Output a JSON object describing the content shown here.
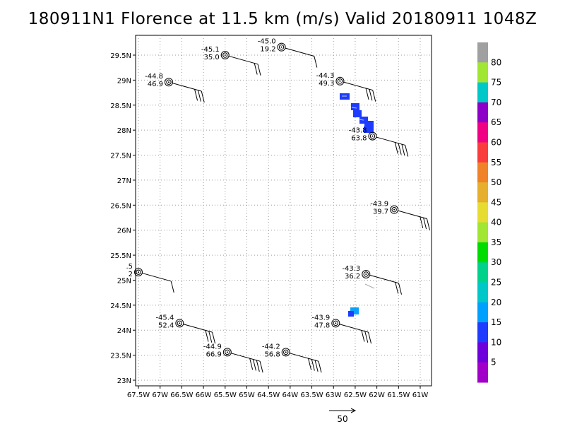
{
  "title": "180911N1 Florence at 11.5 km (m/s) Valid 20180911  1048Z",
  "map": {
    "lon_ticks": [
      "67.5W",
      "67W",
      "66.5W",
      "66W",
      "65.5W",
      "65W",
      "64.5W",
      "64W",
      "63.5W",
      "63W",
      "62.5W",
      "62W",
      "61.5W",
      "61W"
    ],
    "lat_ticks": [
      "29.5N",
      "29N",
      "28.5N",
      "28N",
      "27.5N",
      "27N",
      "26.5N",
      "26N",
      "25.5N",
      "25N",
      "24.5N",
      "24N",
      "23.5N",
      "23N"
    ],
    "lon_range": [
      -67.7,
      -60.6
    ],
    "lat_range": [
      22.9,
      30.1
    ],
    "grid": "dotted"
  },
  "colorbar": {
    "labels": [
      "5",
      "10",
      "15",
      "20",
      "25",
      "30",
      "35",
      "40",
      "45",
      "50",
      "55",
      "60",
      "65",
      "70",
      "75",
      "80"
    ],
    "colors": [
      "#a000c8",
      "#6e00dc",
      "#1e3cff",
      "#00a0ff",
      "#00c8c8",
      "#00d28c",
      "#00dc00",
      "#a0e632",
      "#e6dc32",
      "#e6af2d",
      "#f08228",
      "#fa3c3c",
      "#f00082",
      "#8c00c8",
      "#00c8c8",
      "#a0e632",
      "#a0a0a0"
    ]
  },
  "stations": [
    {
      "t": "-45.1",
      "v": "35.0",
      "lon": -65.5,
      "lat": 29.5
    },
    {
      "t": "-45.0",
      "v": "19.2",
      "lon": -64.2,
      "lat": 29.66
    },
    {
      "t": "-44.8",
      "v": "46.9",
      "lon": -66.8,
      "lat": 28.96
    },
    {
      "t": "-44.3",
      "v": "49.3",
      "lon": -62.85,
      "lat": 28.98
    },
    {
      "t": "-43.8",
      "v": "63.8",
      "lon": -62.1,
      "lat": 27.88
    },
    {
      "t": "-43.9",
      "v": "39.7",
      "lon": -61.6,
      "lat": 26.41
    },
    {
      "t": ".5",
      "v": "2",
      "lon": -67.5,
      "lat": 25.16
    },
    {
      "t": "-43.3",
      "v": "36.2",
      "lon": -62.25,
      "lat": 25.12
    },
    {
      "t": "-45.4",
      "v": "52.4",
      "lon": -66.55,
      "lat": 24.14
    },
    {
      "t": "-43.9",
      "v": "47.8",
      "lon": -62.95,
      "lat": 24.14
    },
    {
      "t": "-44.9",
      "v": "66.9",
      "lon": -65.45,
      "lat": 23.56
    },
    {
      "t": "-44.2",
      "v": "56.8",
      "lon": -64.1,
      "lat": 23.56
    }
  ],
  "reference_vector": {
    "label": "50"
  }
}
